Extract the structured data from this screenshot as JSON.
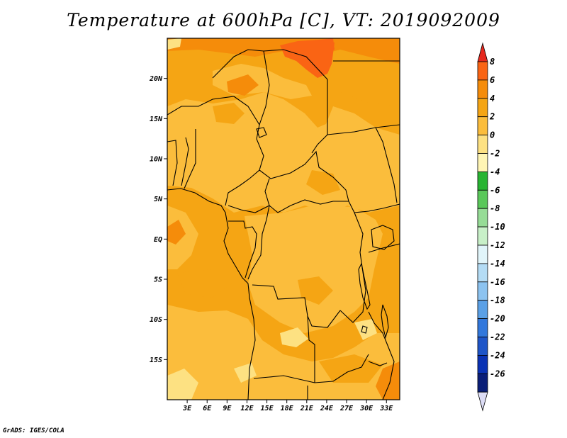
{
  "title": "Temperature at 600hPa [C], VT: 2019092009",
  "footer": "GrADS: IGES/COLA",
  "map": {
    "lon_range": [
      0,
      35
    ],
    "lat_range": [
      -20,
      25
    ],
    "lat_ticks": [
      {
        "lat": 20,
        "label": "20N"
      },
      {
        "lat": 15,
        "label": "15N"
      },
      {
        "lat": 10,
        "label": "10N"
      },
      {
        "lat": 5,
        "label": "5N"
      },
      {
        "lat": 0,
        "label": "EQ"
      },
      {
        "lat": -5,
        "label": "5S"
      },
      {
        "lat": -10,
        "label": "10S"
      },
      {
        "lat": -15,
        "label": "15S"
      }
    ],
    "lon_ticks": [
      {
        "lon": 3,
        "label": "3E"
      },
      {
        "lon": 6,
        "label": "6E"
      },
      {
        "lon": 9,
        "label": "9E"
      },
      {
        "lon": 12,
        "label": "12E"
      },
      {
        "lon": 15,
        "label": "15E"
      },
      {
        "lon": 18,
        "label": "18E"
      },
      {
        "lon": 21,
        "label": "21E"
      },
      {
        "lon": 24,
        "label": "24E"
      },
      {
        "lon": 27,
        "label": "27E"
      },
      {
        "lon": 30,
        "label": "30E"
      },
      {
        "lon": 33,
        "label": "33E"
      }
    ]
  },
  "colorbar": {
    "levels": [
      "8",
      "6",
      "4",
      "2",
      "0",
      "-2",
      "-4",
      "-6",
      "-8",
      "-10",
      "-12",
      "-14",
      "-16",
      "-18",
      "-20",
      "-22",
      "-24",
      "-26"
    ],
    "colors": [
      "#e6281e",
      "#fa6414",
      "#f58c0a",
      "#f5a514",
      "#fbbd3c",
      "#fde182",
      "#fff5b4",
      "#28b432",
      "#5ac85a",
      "#96dc96",
      "#c8f0c8",
      "#e1f5fa",
      "#b4dcf5",
      "#8cc3f0",
      "#5aa0e6",
      "#3278dc",
      "#1e55c8",
      "#0a32b4",
      "#0a1e78"
    ],
    "top_cap_color": "#e6281e",
    "bottom_cap_color": "#dcdcf5"
  }
}
